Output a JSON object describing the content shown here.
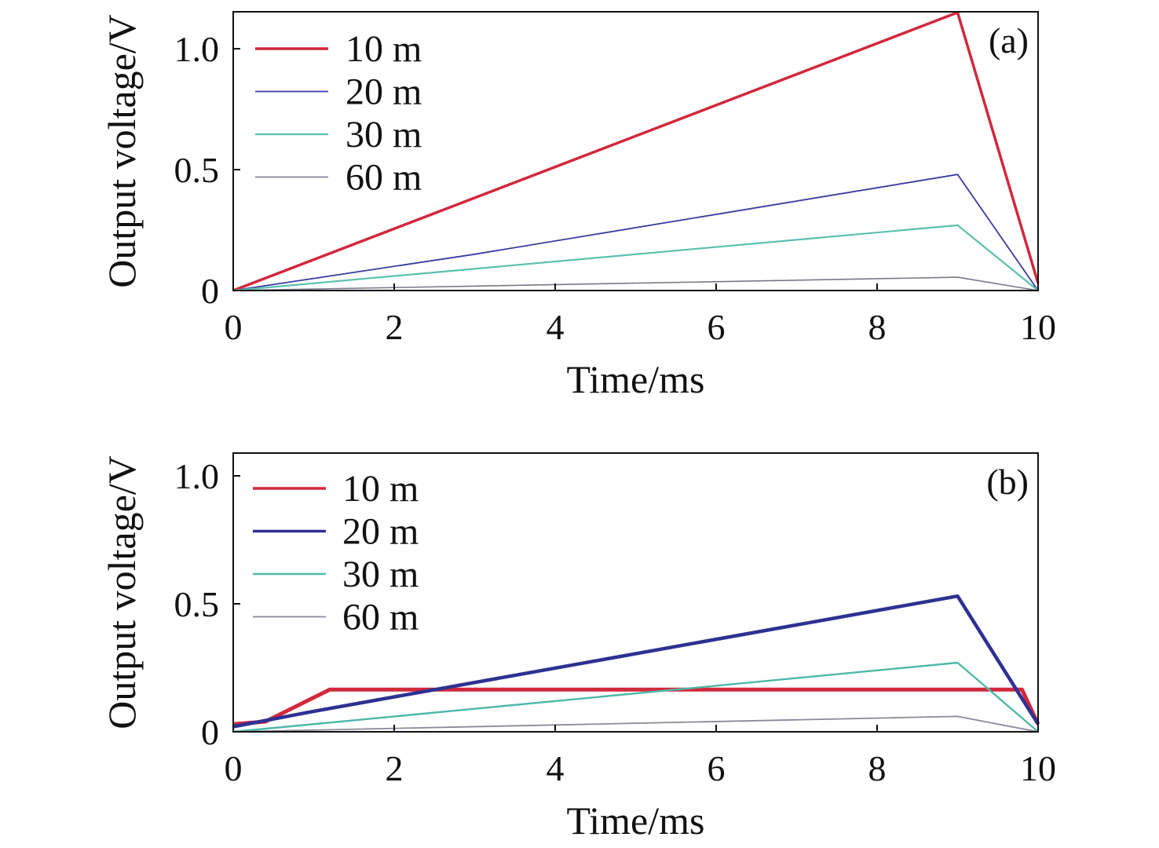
{
  "chart_data": [
    {
      "type": "line",
      "panel_label": "(a)",
      "xlabel": "Time/ms",
      "ylabel": "Output voltage/V",
      "xlim": [
        0,
        10
      ],
      "ylim": [
        0,
        1.153
      ],
      "xticks": [
        0,
        2,
        4,
        6,
        8,
        10
      ],
      "xtick_labels": [
        "0",
        "2",
        "4",
        "6",
        "8",
        "10"
      ],
      "yticks": [
        0,
        0.5,
        1.0
      ],
      "ytick_labels": [
        "0",
        "0.5",
        "1.0"
      ],
      "legend_position": "top-left",
      "series": [
        {
          "name": "10 m",
          "color": "#d2283c",
          "width": 3.5,
          "x": [
            0,
            9,
            10
          ],
          "y": [
            0,
            1.15,
            0.03
          ]
        },
        {
          "name": "20 m",
          "color": "#3a3aa0",
          "width": 1.8,
          "x": [
            0,
            1,
            3,
            9,
            10
          ],
          "y": [
            0,
            0.05,
            0.15,
            0.48,
            0
          ]
        },
        {
          "name": "30 m",
          "color": "#5cc0b0",
          "width": 2.2,
          "x": [
            0,
            9,
            10
          ],
          "y": [
            0,
            0.27,
            0
          ]
        },
        {
          "name": "60 m",
          "color": "#77778a",
          "width": 1.6,
          "x": [
            0,
            9,
            10
          ],
          "y": [
            0,
            0.055,
            0
          ]
        }
      ]
    },
    {
      "type": "line",
      "panel_label": "(b)",
      "xlabel": "Time/ms",
      "ylabel": "Output voltage/V",
      "xlim": [
        0,
        10
      ],
      "ylim": [
        0,
        1.089
      ],
      "xticks": [
        0,
        2,
        4,
        6,
        8,
        10
      ],
      "xtick_labels": [
        "0",
        "2",
        "4",
        "6",
        "8",
        "10"
      ],
      "yticks": [
        0,
        0.5,
        1.0
      ],
      "ytick_labels": [
        "0",
        "0.5",
        "1.0"
      ],
      "legend_position": "top-left",
      "series": [
        {
          "name": "10 m",
          "color": "#d2283c",
          "width": 5,
          "x": [
            0,
            0.4,
            1.2,
            9.8,
            10
          ],
          "y": [
            0.03,
            0.04,
            0.165,
            0.165,
            0.03
          ]
        },
        {
          "name": "20 m",
          "color": "#2e3192",
          "width": 4.5,
          "x": [
            0,
            1,
            9,
            10
          ],
          "y": [
            0.02,
            0.08,
            0.53,
            0.03
          ]
        },
        {
          "name": "30 m",
          "color": "#4fb8a8",
          "width": 2.4,
          "x": [
            0,
            9,
            10
          ],
          "y": [
            0,
            0.27,
            0
          ]
        },
        {
          "name": "60 m",
          "color": "#88889a",
          "width": 1.8,
          "x": [
            0,
            9,
            10
          ],
          "y": [
            0,
            0.06,
            0
          ]
        }
      ]
    }
  ]
}
